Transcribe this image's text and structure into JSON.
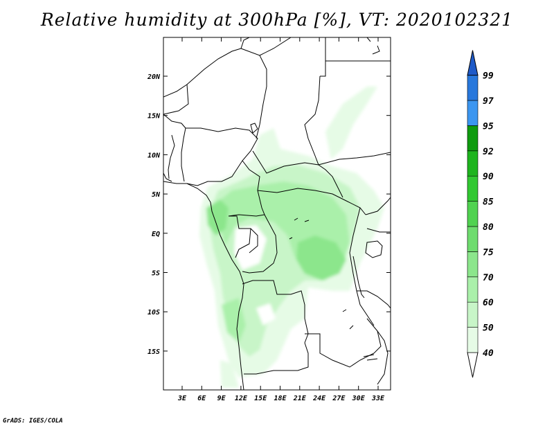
{
  "title": "Relative humidity at 300hPa [%], VT: 2020102321",
  "credit": "GrADS: IGES/COLA",
  "map": {
    "lat_ticks": [
      "20N",
      "15N",
      "10N",
      "5N",
      "EQ",
      "5S",
      "10S",
      "15S"
    ],
    "lon_ticks": [
      "3E",
      "6E",
      "9E",
      "12E",
      "15E",
      "18E",
      "21E",
      "24E",
      "27E",
      "30E",
      "33E"
    ]
  },
  "colorbar": {
    "levels": [
      "40",
      "50",
      "60",
      "70",
      "75",
      "80",
      "85",
      "90",
      "92",
      "95",
      "97",
      "99"
    ],
    "colors": [
      "#ffffff",
      "#e6fbe6",
      "#c8f5c8",
      "#aaf0aa",
      "#8ce68c",
      "#6edc6e",
      "#50d250",
      "#32c832",
      "#1eb41e",
      "#0f9b0f",
      "#3c96f0",
      "#2878dc",
      "#1e5ac8"
    ]
  }
}
